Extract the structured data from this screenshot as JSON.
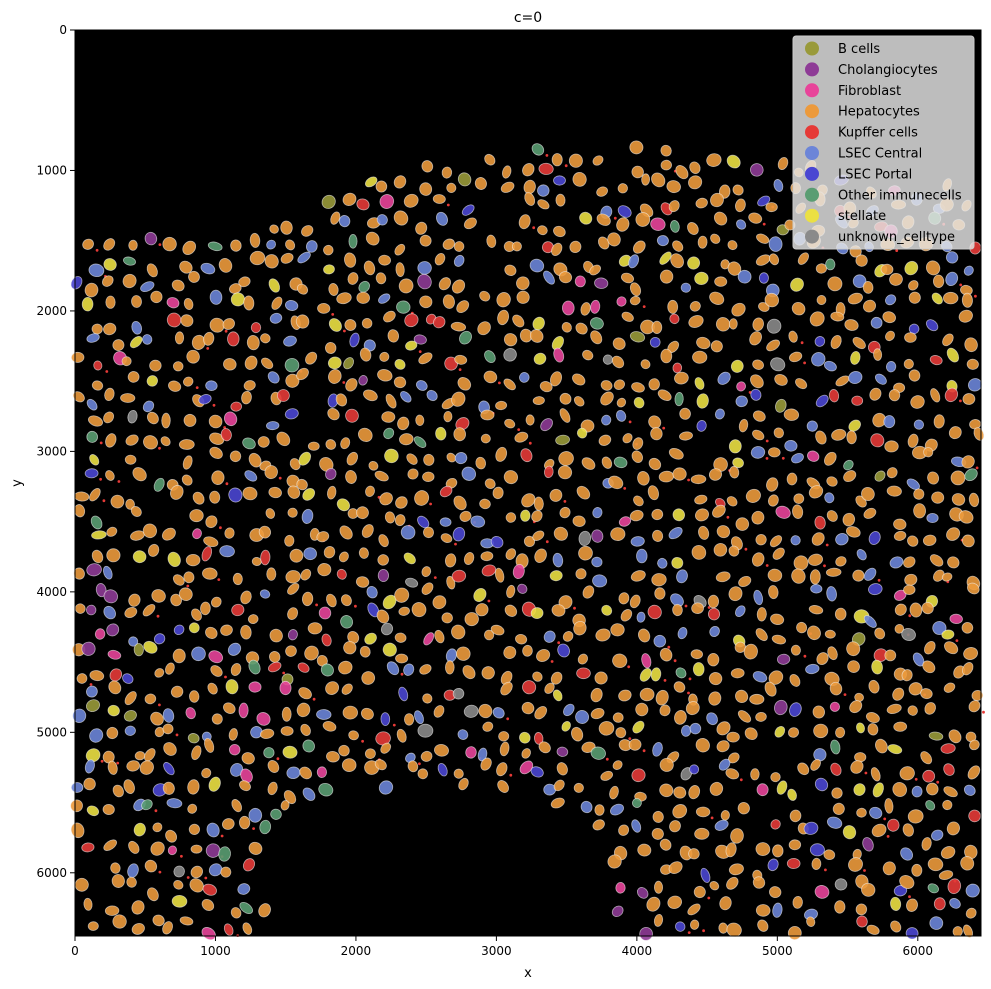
{
  "figure": {
    "title": "c=0",
    "xlabel": "x",
    "ylabel": "y",
    "x_ticks": [
      "0",
      "1000",
      "2000",
      "3000",
      "4000",
      "5000",
      "6000"
    ],
    "y_ticks": [
      "0",
      "1000",
      "2000",
      "3000",
      "4000",
      "5000",
      "6000"
    ]
  },
  "chart_data": {
    "type": "scatter",
    "description_kind": "cell segmentation overlay on microscopy image, colored by cell type",
    "xlim": [
      0,
      6450
    ],
    "ylim": [
      6450,
      0
    ],
    "y_inverted": true,
    "grid": false,
    "legend_position": "top-right",
    "background_color": "#000000",
    "legend": [
      {
        "label": "B cells",
        "color": "#999a3a"
      },
      {
        "label": "Cholangiocytes",
        "color": "#8e3b96"
      },
      {
        "label": "Fibroblast",
        "color": "#e8449a"
      },
      {
        "label": "Hepatocytes",
        "color": "#ec9a3c"
      },
      {
        "label": "Kupffer cells",
        "color": "#e63a37"
      },
      {
        "label": "LSEC Central",
        "color": "#6c85d8"
      },
      {
        "label": "LSEC Portal",
        "color": "#4a46d2"
      },
      {
        "label": "Other immunecells",
        "color": "#5a9d72"
      },
      {
        "label": "stellate",
        "color": "#ebe043"
      },
      {
        "label": "unknown_celltype",
        "color": "#8a8a8a"
      }
    ]
  }
}
